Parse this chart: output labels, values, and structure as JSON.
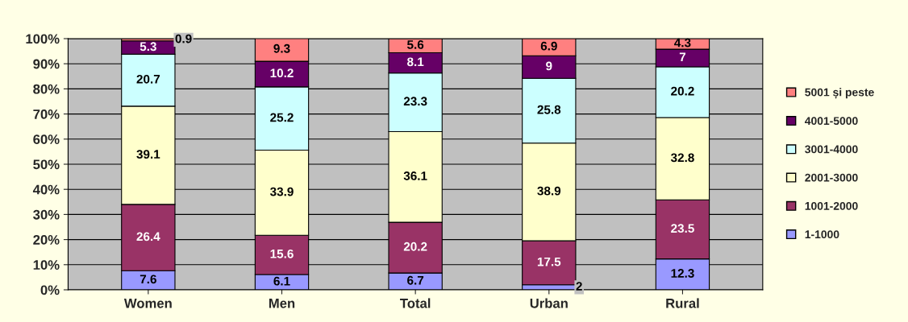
{
  "chart_data": {
    "type": "bar",
    "stacked": true,
    "data_labels": true,
    "grid": "y",
    "legend": "right",
    "categories": [
      "Women",
      "Men",
      "Total",
      "Urban",
      "Rural"
    ],
    "ylim": [
      0,
      100
    ],
    "yticks": [
      {
        "value": 0,
        "label": "0%"
      },
      {
        "value": 10,
        "label": "10%"
      },
      {
        "value": 20,
        "label": "20%"
      },
      {
        "value": 30,
        "label": "30%"
      },
      {
        "value": 40,
        "label": "40%"
      },
      {
        "value": 50,
        "label": "50%"
      },
      {
        "value": 60,
        "label": "60%"
      },
      {
        "value": 70,
        "label": "70%"
      },
      {
        "value": 80,
        "label": "80%"
      },
      {
        "value": 90,
        "label": "90%"
      },
      {
        "value": 100,
        "label": "100%"
      }
    ],
    "series": [
      {
        "name": "1-1000",
        "color": "#9999ff",
        "values": [
          7.6,
          6.1,
          6.7,
          2,
          12.3
        ]
      },
      {
        "name": "1001-2000",
        "color": "#993366",
        "values": [
          26.4,
          15.6,
          20.2,
          17.5,
          23.5
        ]
      },
      {
        "name": "2001-3000",
        "color": "#ffffcc",
        "values": [
          39.1,
          33.9,
          36.1,
          38.9,
          32.8
        ]
      },
      {
        "name": "3001-4000",
        "color": "#ccffff",
        "values": [
          20.7,
          25.2,
          23.3,
          25.8,
          20.2
        ]
      },
      {
        "name": "4001-5000",
        "color": "#660066",
        "values": [
          5.3,
          10.2,
          8.1,
          9,
          7
        ]
      },
      {
        "name": "5001 și peste",
        "color": "#ff8080",
        "values": [
          0.9,
          9.3,
          5.6,
          6.9,
          4.3
        ]
      }
    ]
  }
}
